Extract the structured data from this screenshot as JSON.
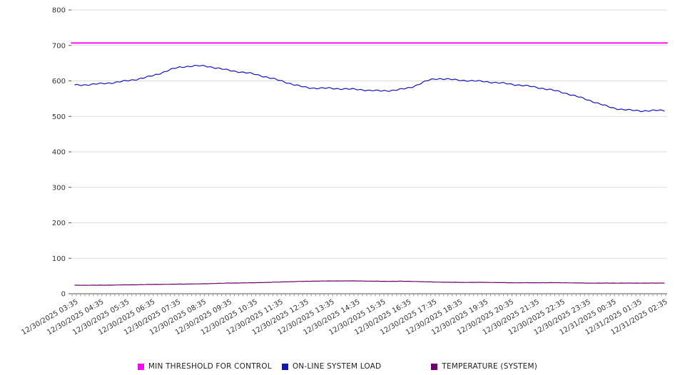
{
  "chart": {
    "background": "#ffffff",
    "axis_color": "#555555",
    "grid_color": "#dddddd",
    "tick_color": "#999999",
    "label_color": "#333333"
  },
  "chart_data": {
    "type": "line",
    "title": "",
    "xlabel": "",
    "ylabel": "",
    "ylim": [
      0,
      800
    ],
    "ytick_step": 100,
    "grid": true,
    "legend_position": "bottom",
    "categories": [
      "12/30/2025 03:35",
      "12/30/2025 04:35",
      "12/30/2025 05:35",
      "12/30/2025 06:35",
      "12/30/2025 07:35",
      "12/30/2025 08:35",
      "12/30/2025 09:35",
      "12/30/2025 10:35",
      "12/30/2025 11:35",
      "12/30/2025 12:35",
      "12/30/2025 13:35",
      "12/30/2025 14:35",
      "12/30/2025 15:35",
      "12/30/2025 16:35",
      "12/30/2025 17:35",
      "12/30/2025 18:35",
      "12/30/2025 19:35",
      "12/30/2025 20:35",
      "12/30/2025 21:35",
      "12/30/2025 22:35",
      "12/30/2025 23:35",
      "12/31/2025 00:35",
      "12/31/2025 01:35",
      "12/31/2025 02:35"
    ],
    "series": [
      {
        "name": "MIN THRESHOLD FOR CONTROL",
        "color": "#ff00ff",
        "values": [
          707,
          707,
          707,
          707,
          707,
          707,
          707,
          707,
          707,
          707,
          707,
          707,
          707,
          707,
          707,
          707,
          707,
          707,
          707,
          707,
          707,
          707,
          707,
          707
        ]
      },
      {
        "name": "ON-LINE SYSTEM LOAD",
        "color": "#1414b8",
        "values": [
          588,
          592,
          600,
          614,
          637,
          642,
          630,
          619,
          601,
          582,
          579,
          576,
          572,
          580,
          605,
          602,
          598,
          591,
          582,
          568,
          547,
          524,
          516,
          517
        ]
      },
      {
        "name": "TEMPERATURE (SYSTEM)",
        "color": "#6a006a",
        "values": [
          24,
          24,
          25,
          26,
          27,
          28,
          30,
          31,
          33,
          35,
          36,
          36,
          35,
          35,
          33,
          32,
          32,
          31,
          31,
          31,
          30,
          30,
          30,
          30
        ]
      }
    ]
  }
}
